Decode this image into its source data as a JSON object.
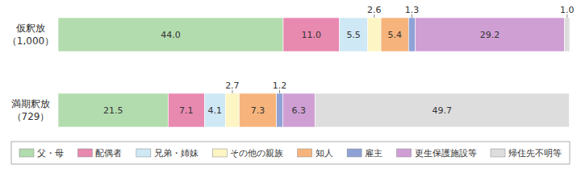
{
  "chart_data": {
    "type": "bar",
    "orientation": "horizontal",
    "stacked": true,
    "data_labels": true,
    "ylim": [
      0,
      100
    ],
    "categories": [
      "仮釈放\n（1,000）",
      "満期釈放\n（729）"
    ],
    "series": [
      {
        "name": "父・母",
        "color": "#b3dcae",
        "values": [
          44.0,
          21.5
        ],
        "value_labels": [
          "44.0",
          "21.5"
        ]
      },
      {
        "name": "配偶者",
        "color": "#e889b0",
        "values": [
          11.0,
          7.1
        ],
        "value_labels": [
          "11.0",
          "7.1"
        ]
      },
      {
        "name": "兄弟・姉妹",
        "color": "#cfe8f6",
        "values": [
          5.5,
          4.1
        ],
        "value_labels": [
          "5.5",
          "4.1"
        ]
      },
      {
        "name": "その他の親族",
        "color": "#fdf6c4",
        "values": [
          2.6,
          2.7
        ],
        "value_labels": [
          "2.6",
          "2.7"
        ]
      },
      {
        "name": "知人",
        "color": "#f6b47c",
        "values": [
          5.4,
          7.3
        ],
        "value_labels": [
          "5.4",
          "7.3"
        ]
      },
      {
        "name": "雇主",
        "color": "#8fa2d6",
        "values": [
          1.3,
          1.2
        ],
        "value_labels": [
          "1.3",
          "1.2"
        ]
      },
      {
        "name": "更生保護施設等",
        "color": "#cf9fd4",
        "values": [
          29.2,
          6.3
        ],
        "value_labels": [
          "29.2",
          "6.3"
        ]
      },
      {
        "name": "帰住先不明等",
        "color": "#dddddd",
        "values": [
          1.0,
          49.7
        ],
        "value_labels": [
          "1.0",
          "49.7"
        ]
      }
    ]
  }
}
